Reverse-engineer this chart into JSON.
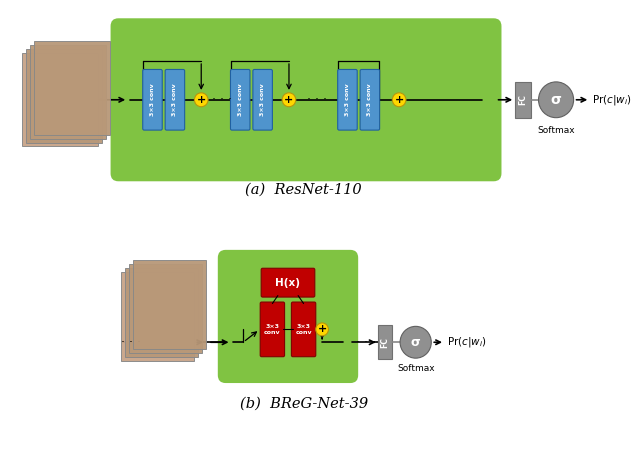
{
  "fig_width": 6.4,
  "fig_height": 4.55,
  "dpi": 100,
  "bg_color": "#ffffff",
  "green_bg": "#80c342",
  "blue_conv": "#4f94cd",
  "red_block": "#c00000",
  "yellow_circle": "#ffd700",
  "gray_fc": "#909090",
  "gray_circle": "#909090",
  "label_a": "(a)  ResNet-110",
  "label_b": "(b)  BReG-Net-39",
  "softmax_text": "Softmax",
  "sigma_text": "σ",
  "fc_text": "FC",
  "conv_text": "3×3 conv",
  "hx_text": "H(x)",
  "plus_text": "+"
}
